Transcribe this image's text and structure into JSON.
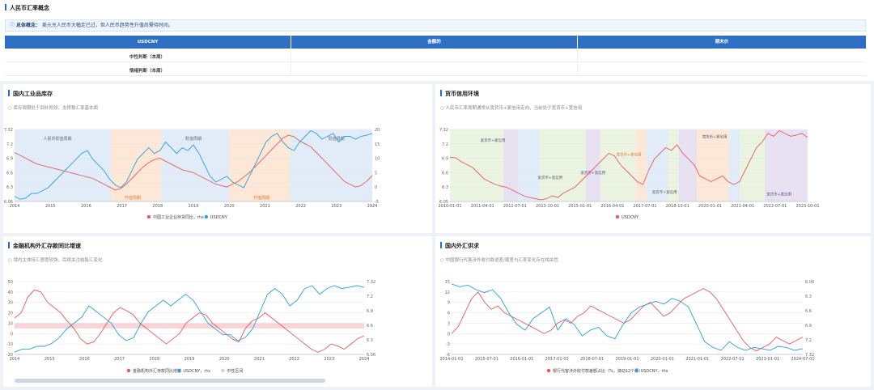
{
  "top": {
    "title": "人民币汇率概念",
    "note_label": "总体概念：",
    "note_text": "美元兑人民币大幅走已过，但人民币趋势性升值尚需待时间。",
    "col_headers": [
      "USDCNY",
      "金额的",
      "期末价"
    ],
    "row_labels": [
      "中性判断（本周）",
      "情绪判断（本周）"
    ]
  },
  "colors": {
    "red": "#e85a5a",
    "blue": "#2aa0d8",
    "band_blue": "#dce9f7",
    "band_orange": "#fde3cf",
    "band_green": "#e6f2dc",
    "band_purple": "#e4dcef",
    "accent": "#2e6fc3"
  },
  "panels": [
    {
      "title": "国内工业品库存",
      "subtitle": "○ 库存周期处于回补阶段，支撑稳汇率基本面",
      "chart_data": {
        "type": "line",
        "x_ticks": [
          "2014",
          "2015",
          "2016",
          "2017",
          "2018",
          "2019",
          "2020",
          "2021",
          "2022",
          "2023",
          "2024"
        ],
        "y_left": [
          "7.32",
          "7.2",
          "6.9",
          "6.6",
          "6.3",
          "6.06"
        ],
        "y_right": [
          "20",
          "15",
          "10",
          "5",
          "0",
          "-5"
        ],
        "phase_labels": [
          "人民币贬值周期",
          "贬值周期",
          "贬值周期",
          "升值周期",
          "升值周期"
        ],
        "legend": [
          "中国工业企业存货同比，rhs",
          "USDCNY"
        ],
        "series": [
          {
            "name": "中国工业企业存货同比，rhs",
            "axis": "right",
            "values": [
              12,
              11,
              10,
              9,
              8,
              7.5,
              7,
              6.5,
              6,
              5.5,
              5,
              4.5,
              4,
              3.5,
              3,
              2,
              1,
              0,
              -1,
              -0.5,
              1,
              3,
              5,
              7,
              8.5,
              9.5,
              10,
              9,
              8,
              7,
              6,
              5.5,
              5,
              4,
              3,
              2,
              1,
              0.5,
              0,
              1,
              2,
              3.5,
              5,
              7,
              9,
              11,
              13,
              15,
              17,
              18,
              17.5,
              16,
              15,
              14,
              12,
              10,
              8,
              6,
              4,
              2,
              1,
              0,
              0.5,
              2,
              4
            ]
          },
          {
            "name": "USDCNY",
            "axis": "left",
            "values": [
              6.15,
              6.1,
              6.12,
              6.2,
              6.2,
              6.25,
              6.3,
              6.4,
              6.5,
              6.6,
              6.7,
              6.8,
              6.9,
              6.95,
              6.8,
              6.7,
              6.6,
              6.45,
              6.35,
              6.3,
              6.4,
              6.6,
              6.8,
              6.9,
              7.0,
              6.9,
              6.95,
              7.1,
              7.0,
              6.9,
              7.0,
              6.95,
              7.05,
              6.9,
              6.7,
              6.5,
              6.4,
              6.45,
              6.5,
              6.4,
              6.35,
              6.3,
              6.5,
              6.7,
              6.9,
              7.1,
              7.2,
              7.25,
              7.1,
              7.0,
              6.95,
              7.1,
              7.2,
              7.3,
              7.25,
              7.15,
              7.2,
              7.25,
              7.1,
              7.2,
              7.2,
              7.15,
              7.2,
              7.22,
              7.25
            ]
          }
        ]
      }
    },
    {
      "title": "货币信用环境",
      "subtitle": "○ 人民币汇率周期通常从宽货币+紧信用走向，当前处于宽货币+宽信用",
      "chart_data": {
        "type": "line",
        "x_ticks": [
          "2010-01-01",
          "2011-04-01",
          "2012-07-01",
          "2013-10-01",
          "2015-01-01",
          "2016-04-01",
          "2017-07-01",
          "2018-10-01",
          "2020-01-01",
          "2021-04-01",
          "2022-07-01",
          "2023-10-01"
        ],
        "y_left": [
          "7.32",
          "7.2",
          "6.9",
          "6.6",
          "6.3",
          "6.05"
        ],
        "phase_labels": [
          "紧货币+紧信用",
          "宽货币+宽信用",
          "宽货币+宽信用",
          "宽货币+紧信用",
          "宽货币+宽信用",
          "宽货币+紧信用",
          "宽货币+宽信用"
        ],
        "legend": [
          "USDCNY"
        ],
        "series": [
          {
            "name": "USDCNY",
            "values": [
              6.83,
              6.82,
              6.75,
              6.7,
              6.65,
              6.55,
              6.45,
              6.4,
              6.35,
              6.32,
              6.3,
              6.25,
              6.2,
              6.15,
              6.12,
              6.1,
              6.08,
              6.1,
              6.15,
              6.12,
              6.2,
              6.25,
              6.3,
              6.4,
              6.5,
              6.6,
              6.7,
              6.8,
              6.9,
              6.85,
              6.7,
              6.6,
              6.5,
              6.4,
              6.35,
              6.6,
              6.8,
              6.9,
              7.0,
              6.95,
              7.05,
              6.9,
              6.8,
              6.7,
              6.5,
              6.45,
              6.4,
              6.45,
              6.5,
              6.4,
              6.35,
              6.4,
              6.6,
              6.8,
              7.0,
              7.1,
              7.25,
              7.2,
              7.3,
              7.25,
              7.2,
              7.22,
              7.25,
              7.18
            ]
          }
        ]
      }
    },
    {
      "title": "金融机构外汇存款同比增速",
      "subtitle": "○ 境内主体持汇意愿较强，后续关注结售汇变化",
      "chart_data": {
        "type": "line",
        "x_ticks": [
          "2014",
          "2015",
          "2016",
          "2017",
          "2018",
          "2019",
          "2020",
          "2021",
          "2022",
          "2023",
          "2024"
        ],
        "y_left": [
          "50",
          "40",
          "30",
          "20",
          "10",
          "0",
          "-10",
          "-20"
        ],
        "y_right": [
          "7.32",
          "7.2",
          "6.9",
          "6.6",
          "6.3",
          "6.06"
        ],
        "legend": [
          "金融机构外汇存款同比增速",
          "USDCNY，rhs",
          "中性区间"
        ],
        "series": [
          {
            "name": "金融机构外汇存款同比增速",
            "values": [
              15,
              20,
              35,
              42,
              40,
              30,
              25,
              20,
              12,
              5,
              -5,
              -10,
              -8,
              0,
              10,
              20,
              25,
              22,
              18,
              10,
              5,
              0,
              -5,
              -10,
              -5,
              0,
              10,
              15,
              20,
              18,
              10,
              5,
              0,
              -5,
              -8,
              5,
              12,
              15,
              20,
              15,
              10,
              5,
              0,
              -5,
              -10,
              -15,
              -18,
              -15,
              -10,
              -12,
              -15,
              -10,
              -5,
              -2
            ]
          },
          {
            "name": "USDCNY，rhs",
            "values": [
              6.1,
              6.15,
              6.15,
              6.2,
              6.2,
              6.25,
              6.35,
              6.5,
              6.6,
              6.7,
              6.9,
              6.8,
              6.7,
              6.6,
              6.4,
              6.3,
              6.35,
              6.6,
              6.8,
              6.9,
              7.0,
              6.9,
              7.0,
              7.1,
              7.0,
              6.8,
              6.6,
              6.5,
              6.4,
              6.4,
              6.3,
              6.35,
              6.5,
              6.8,
              7.1,
              7.2,
              7.1,
              6.9,
              7.0,
              7.2,
              7.25,
              7.1,
              7.2,
              7.25,
              7.2,
              7.22,
              7.25,
              7.22
            ]
          }
        ]
      }
    },
    {
      "title": "国内外汇供求",
      "subtitle": "○ 中国银行代客涉外收付款逆差/顺差与汇率变化存在相关性",
      "chart_data": {
        "type": "line",
        "x_ticks": [
          "2014-01-01",
          "2015-07-01",
          "2016-01-01",
          "2017-01-01",
          "2018-07-01",
          "2019-01-01",
          "2020-01-01",
          "2021-01-01",
          "2022-07-01",
          "2023-01-01",
          "2024-07-01"
        ],
        "y_left": [
          "15",
          "12",
          "9",
          "6",
          "3",
          "0",
          "-3",
          "-6"
        ],
        "y_right": [
          "6.06",
          "6.3",
          "6.6",
          "6.9",
          "7.2",
          "7.32"
        ],
        "legend": [
          "银行代客涉外收付款差额占比（%，滚动12个月）",
          "USDCNY，rhs"
        ],
        "series": [
          {
            "name": "银行代客涉外收付款差额占比（%，滚动12个月）",
            "values": [
              0,
              2,
              6,
              10,
              12,
              9,
              7,
              8,
              6,
              5,
              4,
              3,
              2,
              1,
              0,
              1,
              3,
              4,
              3,
              5,
              6,
              8,
              7,
              6,
              5,
              4,
              3,
              4,
              6,
              8,
              9,
              7,
              5,
              6,
              8,
              10,
              11,
              12,
              13,
              12,
              10,
              7,
              4,
              1,
              -2,
              -4,
              -5,
              -4,
              -3,
              -1,
              -2,
              -3,
              -2,
              -1
            ]
          },
          {
            "name": "USDCNY，rhs",
            "values": [
              6.1,
              6.15,
              6.12,
              6.2,
              6.25,
              6.2,
              6.35,
              6.6,
              6.8,
              6.9,
              6.7,
              6.6,
              6.5,
              6.9,
              6.7,
              6.8,
              7.0,
              6.9,
              6.85,
              7.0,
              7.05,
              6.8,
              6.6,
              6.5,
              6.45,
              6.4,
              6.45,
              6.35,
              6.4,
              6.5,
              6.8,
              7.1,
              7.2,
              7.25,
              7.1,
              7.2,
              7.25,
              7.2,
              7.22,
              7.25,
              7.18,
              7.2,
              7.25,
              7.22
            ]
          }
        ]
      }
    }
  ]
}
